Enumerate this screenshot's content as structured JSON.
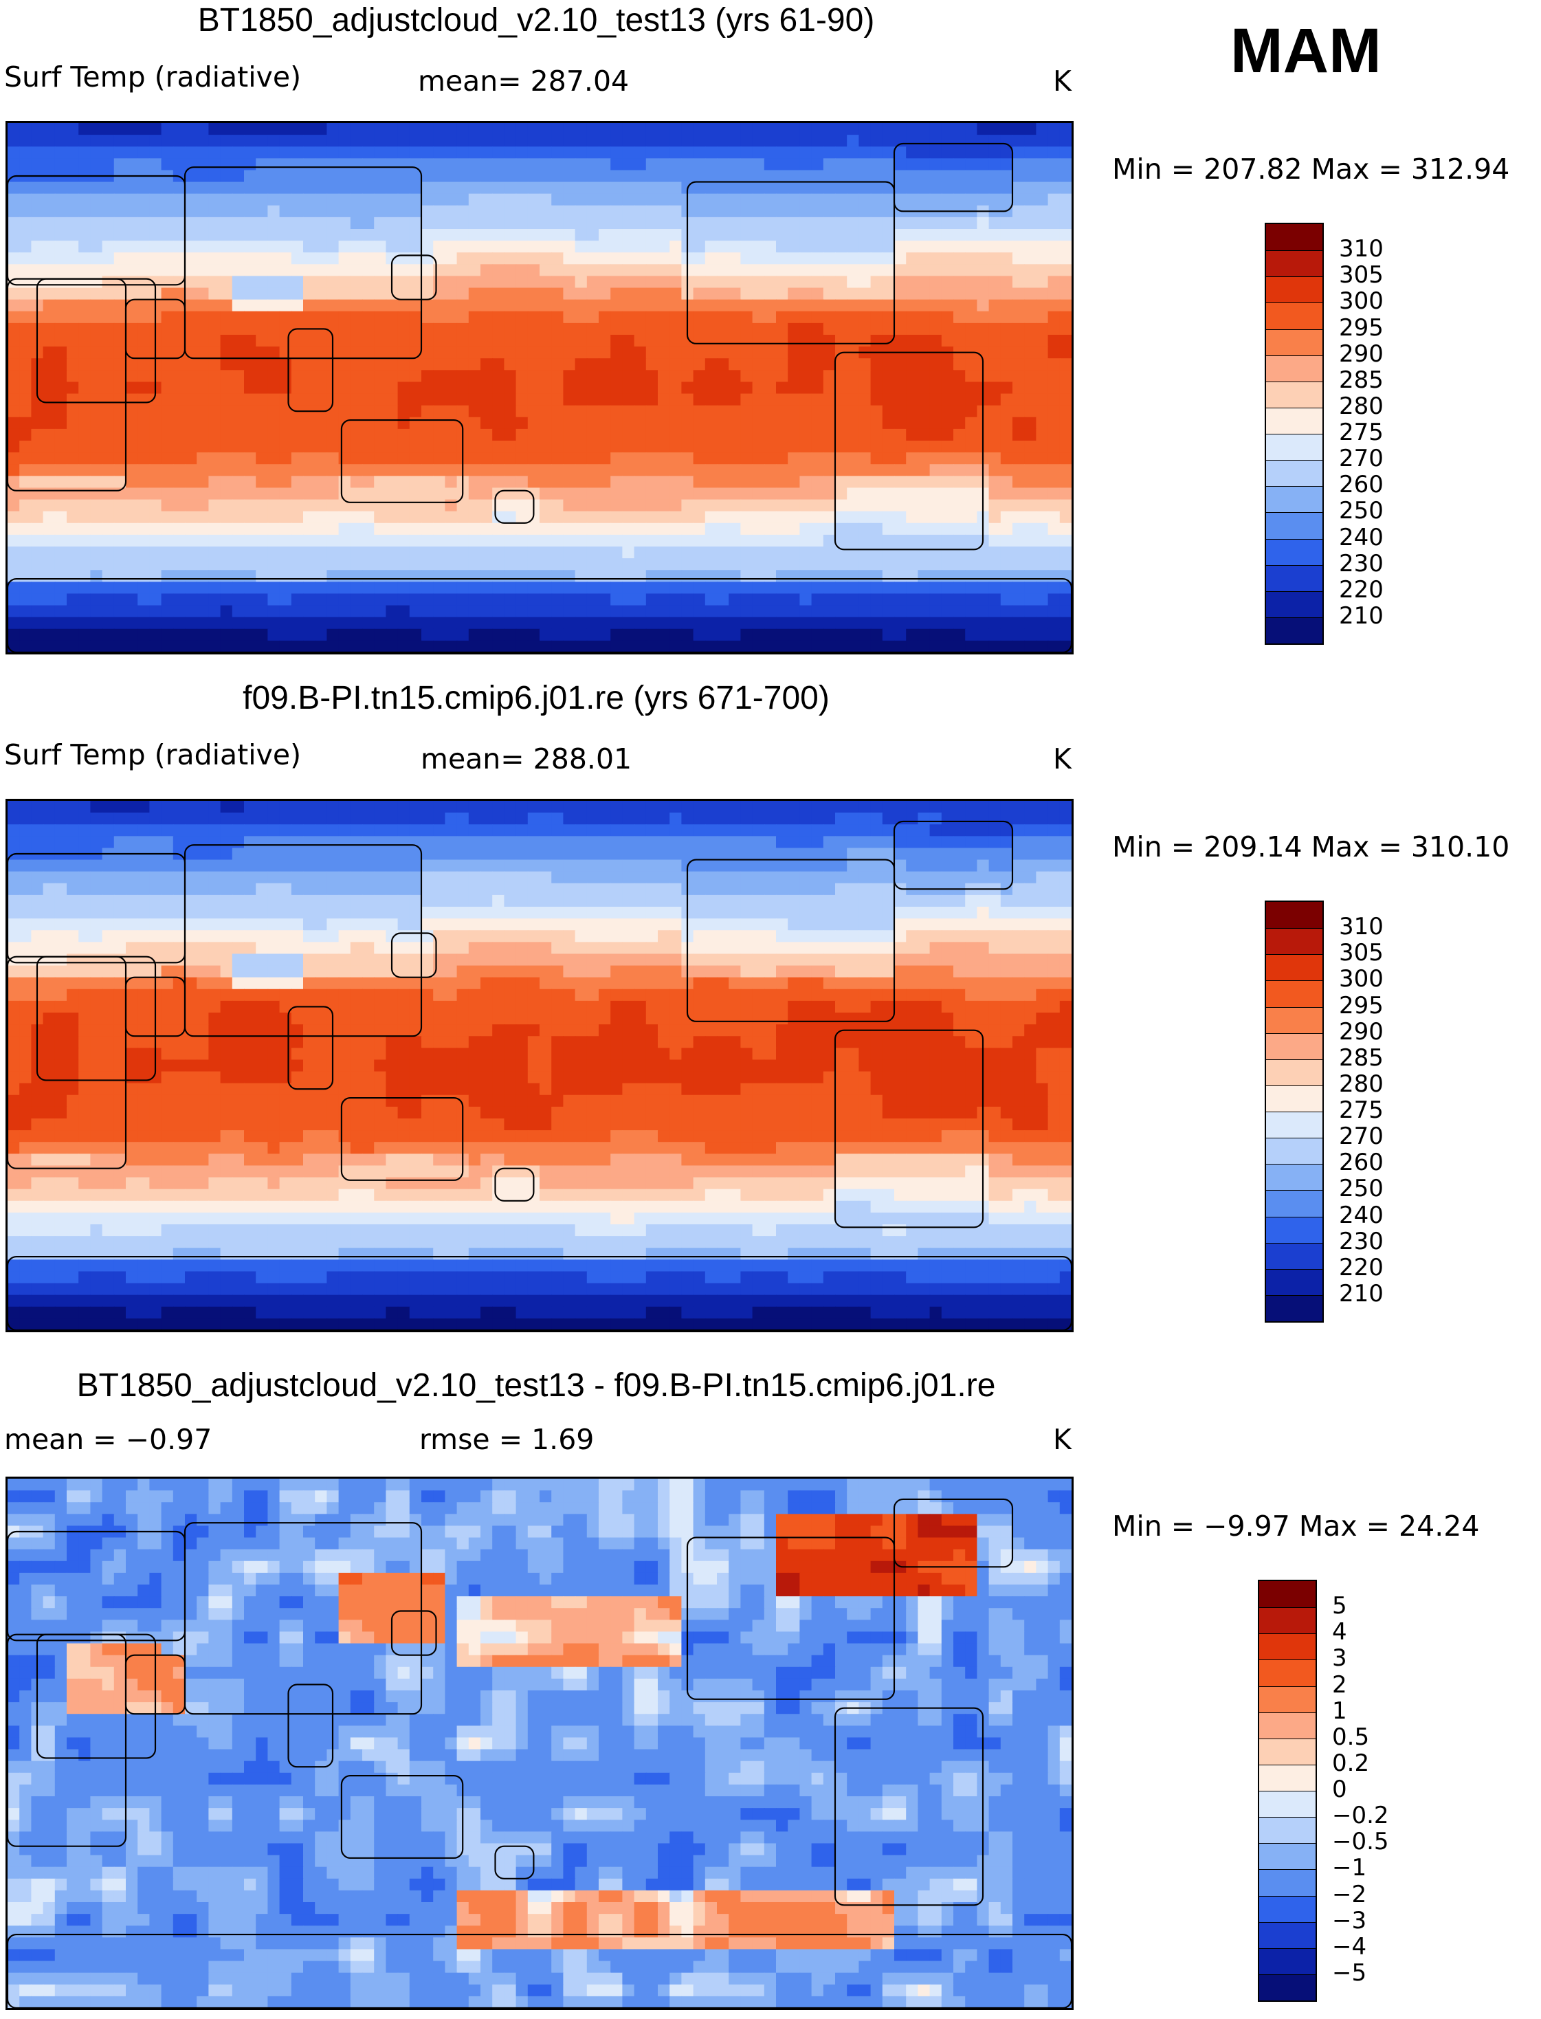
{
  "season": "MAM",
  "panels": [
    {
      "title": "BT1850_adjustcloud_v2.10_test13 (yrs 61-90)",
      "left": "Surf Temp (radiative)",
      "mid": "mean= 287.04",
      "units": "K",
      "minmax": "Min = 207.82 Max = 312.94",
      "field": "abs_a",
      "colorbar": {
        "labels": [
          "310",
          "305",
          "300",
          "295",
          "290",
          "285",
          "280",
          "275",
          "270",
          "260",
          "250",
          "240",
          "230",
          "220",
          "210"
        ],
        "colors": [
          "#7b0000",
          "#b8190a",
          "#e0360b",
          "#f2591f",
          "#f9804a",
          "#fca987",
          "#fdd0b5",
          "#fdeee3",
          "#dbe9fb",
          "#b5d0fa",
          "#86b1f5",
          "#5a8ef0",
          "#2f63eb",
          "#1b3fd0",
          "#0c22a8",
          "#060f78"
        ]
      }
    },
    {
      "title": "f09.B-PI.tn15.cmip6.j01.re (yrs 671-700)",
      "left": "Surf Temp (radiative)",
      "mid": "mean= 288.01",
      "units": "K",
      "minmax": "Min = 209.14 Max = 310.10",
      "field": "abs_b",
      "colorbar": {
        "labels": [
          "310",
          "305",
          "300",
          "295",
          "290",
          "285",
          "280",
          "275",
          "270",
          "260",
          "250",
          "240",
          "230",
          "220",
          "210"
        ],
        "colors": [
          "#7b0000",
          "#b8190a",
          "#e0360b",
          "#f2591f",
          "#f9804a",
          "#fca987",
          "#fdd0b5",
          "#fdeee3",
          "#dbe9fb",
          "#b5d0fa",
          "#86b1f5",
          "#5a8ef0",
          "#2f63eb",
          "#1b3fd0",
          "#0c22a8",
          "#060f78"
        ]
      }
    },
    {
      "title": "BT1850_adjustcloud_v2.10_test13 - f09.B-PI.tn15.cmip6.j01.re",
      "left": "mean =   −0.97",
      "mid": "rmse =    1.69",
      "units": "K",
      "minmax": "Min =  −9.97 Max =  24.24",
      "field": "diff",
      "colorbar": {
        "labels": [
          "5",
          "4",
          "3",
          "2",
          "1",
          "0.5",
          "0.2",
          "0",
          "−0.2",
          "−0.5",
          "−1",
          "−2",
          "−3",
          "−4",
          "−5"
        ],
        "colors": [
          "#7b0000",
          "#b8190a",
          "#e0360b",
          "#f2591f",
          "#f9804a",
          "#fca987",
          "#fdd0b5",
          "#fdeee3",
          "#dbe9fb",
          "#b5d0fa",
          "#86b1f5",
          "#5a8ef0",
          "#2f63eb",
          "#1b3fd0",
          "#0c22a8",
          "#060f78"
        ]
      }
    }
  ]
}
